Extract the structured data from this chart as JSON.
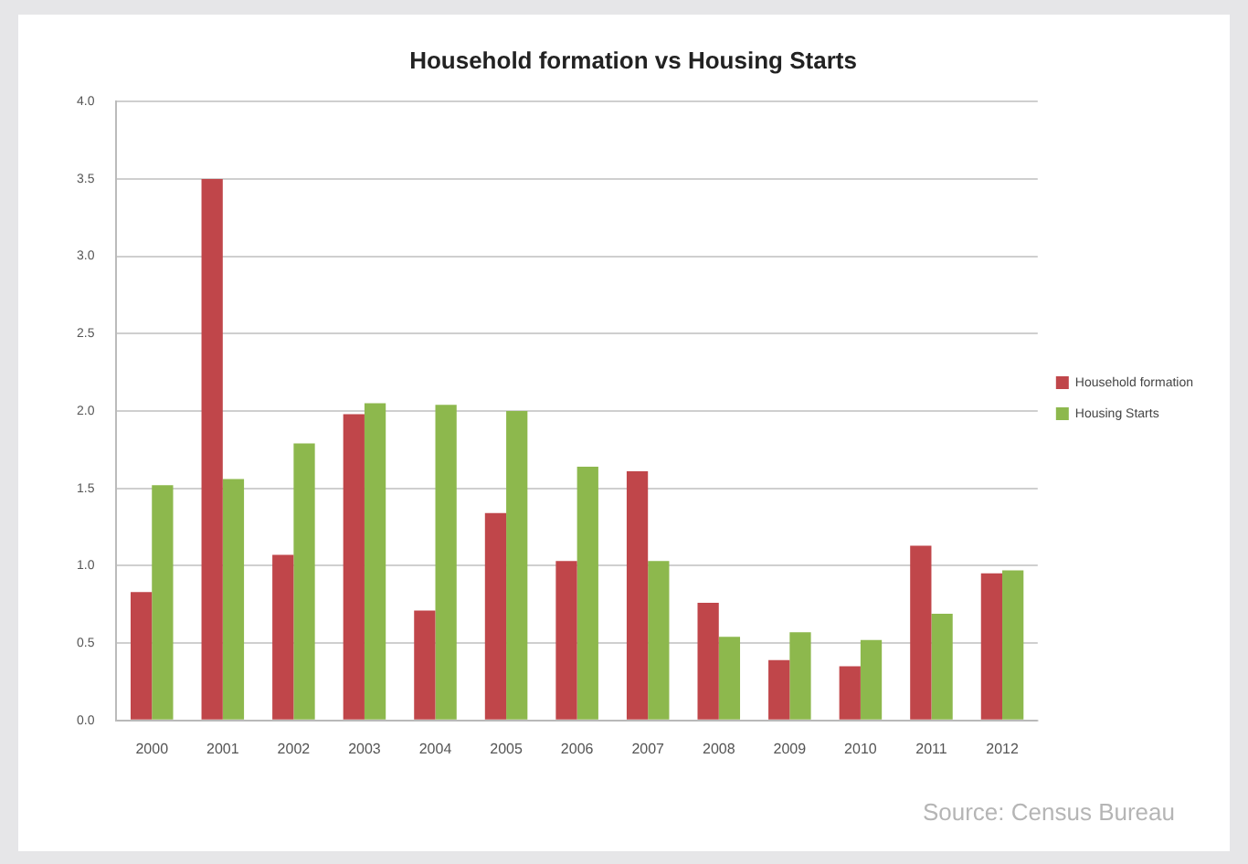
{
  "chart_data": {
    "type": "bar",
    "title": "Household formation vs Housing Starts",
    "categories": [
      "2000",
      "2001",
      "2002",
      "2003",
      "2004",
      "2005",
      "2006",
      "2007",
      "2008",
      "2009",
      "2010",
      "2011",
      "2012"
    ],
    "series": [
      {
        "name": "Household formation",
        "color": "#c0464a",
        "values": [
          0.83,
          3.5,
          1.07,
          1.98,
          0.71,
          1.34,
          1.03,
          1.61,
          0.76,
          0.39,
          0.35,
          1.13,
          0.95
        ]
      },
      {
        "name": "Housing Starts",
        "color": "#8db84d",
        "values": [
          1.52,
          1.56,
          1.79,
          2.05,
          2.04,
          2.0,
          1.64,
          1.03,
          0.54,
          0.57,
          0.52,
          0.69,
          0.97
        ]
      }
    ],
    "ylim": [
      0,
      4
    ],
    "yticks": [
      {
        "value": 0,
        "label": "0.0"
      },
      {
        "value": 0.5,
        "label": "0.5"
      },
      {
        "value": 1,
        "label": "1.0"
      },
      {
        "value": 1.5,
        "label": "1.5"
      },
      {
        "value": 2,
        "label": "2.0"
      },
      {
        "value": 2.5,
        "label": "2.5"
      },
      {
        "value": 3,
        "label": "3.0"
      },
      {
        "value": 3.5,
        "label": "3.5"
      },
      {
        "value": 4,
        "label": "4.0"
      }
    ],
    "grid": "y",
    "legend": "right",
    "annotations": [
      "Source: Census Bureau"
    ]
  }
}
